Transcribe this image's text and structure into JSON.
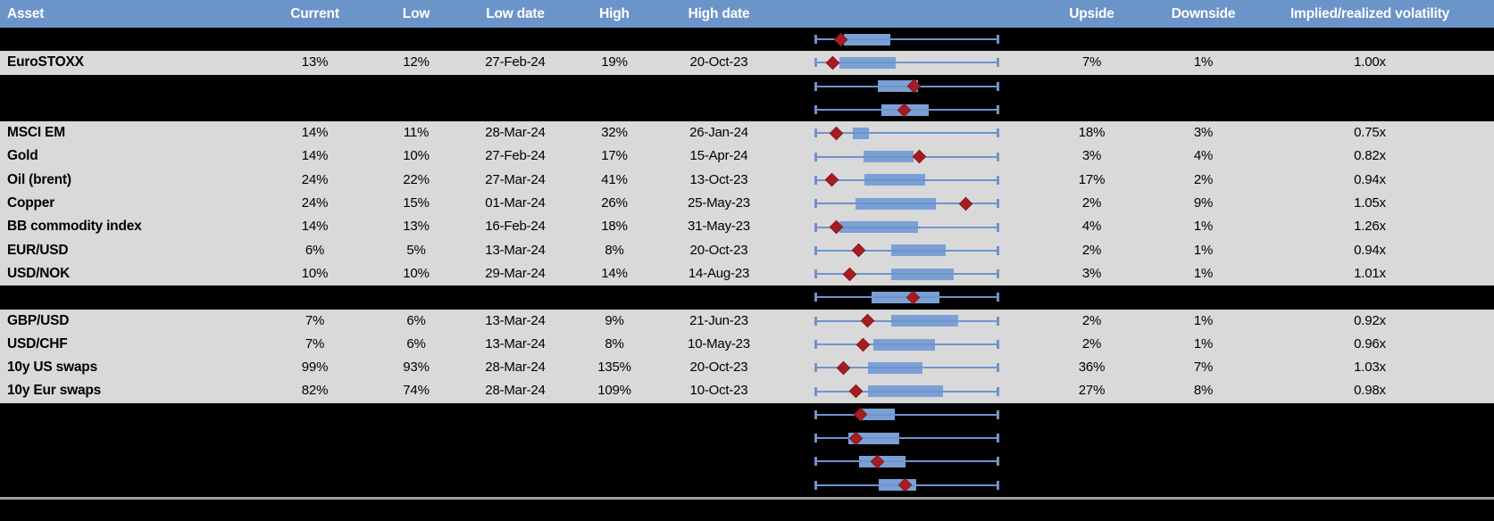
{
  "header": {
    "columns": [
      {
        "id": "asset",
        "label": "Asset"
      },
      {
        "id": "current",
        "label": "Current"
      },
      {
        "id": "low",
        "label": "Low"
      },
      {
        "id": "low_date",
        "label": "Low date"
      },
      {
        "id": "high",
        "label": "High"
      },
      {
        "id": "high_date",
        "label": "High date"
      },
      {
        "id": "range_plot",
        "label": ""
      },
      {
        "id": "upside",
        "label": "Upside"
      },
      {
        "id": "downside",
        "label": "Downside"
      },
      {
        "id": "implied_realized",
        "label": "Implied/realized volatility"
      }
    ]
  },
  "colors": {
    "header_bg": "#6b94c9",
    "header_text": "#ffffff",
    "row_light": "#d9d9d9",
    "row_dark": "#000000",
    "text": "#000000",
    "whisker": "#6d94cc",
    "box_fill": "#7aa0d5",
    "marker": "#a51d23",
    "marker_edge": "#8c161b",
    "separator": "#a0a0a0"
  },
  "chart_data": {
    "type": "table",
    "columns": [
      "Asset",
      "Current",
      "Low",
      "Low date",
      "High",
      "High date",
      "Range boxplot",
      "Upside",
      "Downside",
      "Implied/realized volatility"
    ],
    "boxplot_axis": {
      "min": 0,
      "max": 1,
      "note": "each row shows a horizontal box-whisker: whisker spans the full track (range low to high), box_lo/box_hi and marker are fractions of the whisker length; red diamond = marker position",
      "legend_marker": "red diamond",
      "grid": false
    },
    "rows": [
      {
        "label": "",
        "current": "",
        "low": "",
        "low_date": "",
        "high": "",
        "high_date": "",
        "upside": "",
        "downside": "",
        "implied_realized": "",
        "hidden": true,
        "box_lo": 0.156,
        "box_hi": 0.41,
        "marker": 0.137
      },
      {
        "label": "EuroSTOXX",
        "current": "13%",
        "low": "12%",
        "low_date": "27-Feb-24",
        "high": "19%",
        "high_date": "20-Oct-23",
        "upside": "7%",
        "downside": "1%",
        "implied_realized": "1.00x",
        "hidden": false,
        "box_lo": 0.132,
        "box_hi": 0.439,
        "marker": 0.093
      },
      {
        "label": "",
        "current": "",
        "low": "",
        "low_date": "",
        "high": "",
        "high_date": "",
        "upside": "",
        "downside": "",
        "implied_realized": "",
        "hidden": true,
        "box_lo": 0.341,
        "box_hi": 0.561,
        "marker": 0.537
      },
      {
        "label": "",
        "current": "",
        "low": "",
        "low_date": "",
        "high": "",
        "high_date": "",
        "upside": "",
        "downside": "",
        "implied_realized": "",
        "hidden": true,
        "box_lo": 0.361,
        "box_hi": 0.62,
        "marker": 0.483
      },
      {
        "label": "MSCI EM",
        "current": "14%",
        "low": "11%",
        "low_date": "28-Mar-24",
        "high": "32%",
        "high_date": "26-Jan-24",
        "upside": "18%",
        "downside": "3%",
        "implied_realized": "0.75x",
        "hidden": false,
        "box_lo": 0.205,
        "box_hi": 0.293,
        "marker": 0.117
      },
      {
        "label": "Gold",
        "current": "14%",
        "low": "10%",
        "low_date": "27-Feb-24",
        "high": "17%",
        "high_date": "15-Apr-24",
        "upside": "3%",
        "downside": "4%",
        "implied_realized": "0.82x",
        "hidden": false,
        "box_lo": 0.263,
        "box_hi": 0.537,
        "marker": 0.566
      },
      {
        "label": "Oil (brent)",
        "current": "24%",
        "low": "22%",
        "low_date": "27-Mar-24",
        "high": "41%",
        "high_date": "13-Oct-23",
        "upside": "17%",
        "downside": "2%",
        "implied_realized": "0.94x",
        "hidden": false,
        "box_lo": 0.268,
        "box_hi": 0.6,
        "marker": 0.088
      },
      {
        "label": "Copper",
        "current": "24%",
        "low": "15%",
        "low_date": "01-Mar-24",
        "high": "26%",
        "high_date": "25-May-23",
        "upside": "2%",
        "downside": "9%",
        "implied_realized": "1.05x",
        "hidden": false,
        "box_lo": 0.22,
        "box_hi": 0.659,
        "marker": 0.824
      },
      {
        "label": "BB commodity index",
        "current": "14%",
        "low": "13%",
        "low_date": "16-Feb-24",
        "high": "18%",
        "high_date": "31-May-23",
        "upside": "4%",
        "downside": "1%",
        "implied_realized": "1.26x",
        "hidden": false,
        "box_lo": 0.132,
        "box_hi": 0.561,
        "marker": 0.117
      },
      {
        "label": "EUR/USD",
        "current": "6%",
        "low": "5%",
        "low_date": "13-Mar-24",
        "high": "8%",
        "high_date": "20-Oct-23",
        "upside": "2%",
        "downside": "1%",
        "implied_realized": "0.94x",
        "hidden": false,
        "box_lo": 0.415,
        "box_hi": 0.712,
        "marker": 0.239
      },
      {
        "label": "USD/NOK",
        "current": "10%",
        "low": "10%",
        "low_date": "29-Mar-24",
        "high": "14%",
        "high_date": "14-Aug-23",
        "upside": "3%",
        "downside": "1%",
        "implied_realized": "1.01x",
        "hidden": false,
        "box_lo": 0.415,
        "box_hi": 0.756,
        "marker": 0.19
      },
      {
        "label": "",
        "current": "",
        "low": "",
        "low_date": "",
        "high": "",
        "high_date": "",
        "upside": "",
        "downside": "",
        "implied_realized": "",
        "hidden": true,
        "box_lo": 0.307,
        "box_hi": 0.678,
        "marker": 0.532
      },
      {
        "label": "GBP/USD",
        "current": "7%",
        "low": "6%",
        "low_date": "13-Mar-24",
        "high": "9%",
        "high_date": "21-Jun-23",
        "upside": "2%",
        "downside": "1%",
        "implied_realized": "0.92x",
        "hidden": false,
        "box_lo": 0.415,
        "box_hi": 0.78,
        "marker": 0.283
      },
      {
        "label": "USD/CHF",
        "current": "7%",
        "low": "6%",
        "low_date": "13-Mar-24",
        "high": "8%",
        "high_date": "10-May-23",
        "upside": "2%",
        "downside": "1%",
        "implied_realized": "0.96x",
        "hidden": false,
        "box_lo": 0.317,
        "box_hi": 0.654,
        "marker": 0.259
      },
      {
        "label": "10y US swaps",
        "current": "99%",
        "low": "93%",
        "low_date": "28-Mar-24",
        "high": "135%",
        "high_date": "20-Oct-23",
        "upside": "36%",
        "downside": "7%",
        "implied_realized": "1.03x",
        "hidden": false,
        "box_lo": 0.288,
        "box_hi": 0.585,
        "marker": 0.156
      },
      {
        "label": "10y Eur swaps",
        "current": "82%",
        "low": "74%",
        "low_date": "28-Mar-24",
        "high": "109%",
        "high_date": "10-Oct-23",
        "upside": "27%",
        "downside": "8%",
        "implied_realized": "0.98x",
        "hidden": false,
        "box_lo": 0.288,
        "box_hi": 0.698,
        "marker": 0.22
      },
      {
        "label": "",
        "current": "",
        "low": "",
        "low_date": "",
        "high": "",
        "high_date": "",
        "upside": "",
        "downside": "",
        "implied_realized": "",
        "hidden": true,
        "box_lo": 0.254,
        "box_hi": 0.434,
        "marker": 0.244
      },
      {
        "label": "",
        "current": "",
        "low": "",
        "low_date": "",
        "high": "",
        "high_date": "",
        "upside": "",
        "downside": "",
        "implied_realized": "",
        "hidden": true,
        "box_lo": 0.18,
        "box_hi": 0.459,
        "marker": 0.224
      },
      {
        "label": "",
        "current": "",
        "low": "",
        "low_date": "",
        "high": "",
        "high_date": "",
        "upside": "",
        "downside": "",
        "implied_realized": "",
        "hidden": true,
        "box_lo": 0.239,
        "box_hi": 0.493,
        "marker": 0.341
      },
      {
        "label": "",
        "current": "",
        "low": "",
        "low_date": "",
        "high": "",
        "high_date": "",
        "upside": "",
        "downside": "",
        "implied_realized": "",
        "hidden": true,
        "box_lo": 0.346,
        "box_hi": 0.551,
        "marker": 0.488
      }
    ]
  }
}
